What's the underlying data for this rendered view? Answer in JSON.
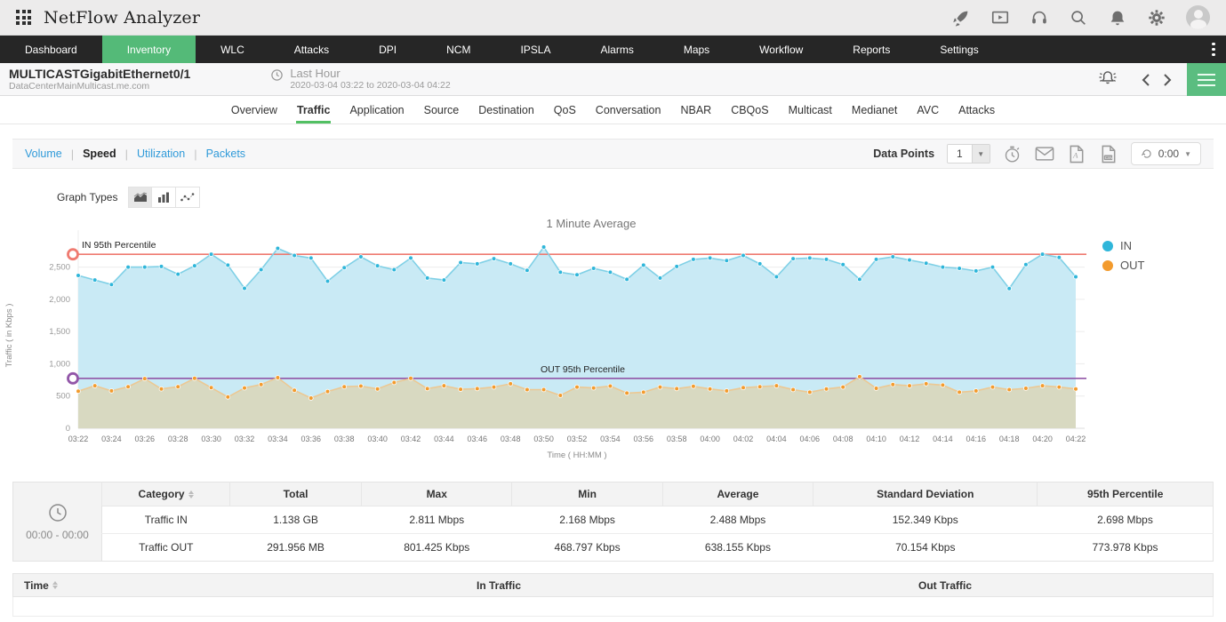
{
  "app": {
    "title": "NetFlow Analyzer"
  },
  "colors": {
    "brand_green": "#54ba78",
    "link_blue": "#2f9ad9",
    "nav_dark": "#262626"
  },
  "topbar_icons": [
    "rocket-icon",
    "presentation-icon",
    "headset-icon",
    "search-icon",
    "bell-icon",
    "gear-icon",
    "avatar"
  ],
  "nav": {
    "items": [
      "Dashboard",
      "Inventory",
      "WLC",
      "Attacks",
      "DPI",
      "NCM",
      "IPSLA",
      "Alarms",
      "Maps",
      "Workflow",
      "Reports",
      "Settings"
    ],
    "active": "Inventory"
  },
  "device": {
    "name": "MULTICASTGigabitEthernet0/1",
    "host": "DataCenterMainMulticast.me.com",
    "period_label": "Last Hour",
    "period_range": "2020-03-04 03:22 to 2020-03-04 04:22"
  },
  "subtabs": {
    "items": [
      "Overview",
      "Traffic",
      "Application",
      "Source",
      "Destination",
      "QoS",
      "Conversation",
      "NBAR",
      "CBQoS",
      "Multicast",
      "Medianet",
      "AVC",
      "Attacks"
    ],
    "active": "Traffic"
  },
  "metric_tabs": {
    "items": [
      "Volume",
      "Speed",
      "Utilization",
      "Packets"
    ],
    "active": "Speed"
  },
  "toolbar": {
    "data_points_label": "Data Points",
    "data_points_value": "1",
    "refresh_value": "0:00"
  },
  "graph_types": {
    "label": "Graph Types",
    "options": [
      "area-chart",
      "bar-chart",
      "scatter-chart"
    ],
    "selected": "area-chart"
  },
  "chart_data": {
    "type": "area",
    "title": "1 Minute Average",
    "xlabel": "Time ( HH:MM )",
    "ylabel": "Traffic ( in Kbps )",
    "ylim": [
      0,
      2880
    ],
    "yticks": [
      0,
      500,
      1000,
      1500,
      2000,
      2500
    ],
    "ytick_labels": [
      "0",
      "500",
      "1,000",
      "1,500",
      "2,000",
      "2,500"
    ],
    "x_tick_every": 2,
    "legend_position": "right",
    "grid": true,
    "x": [
      "03:22",
      "03:23",
      "03:24",
      "03:25",
      "03:26",
      "03:27",
      "03:28",
      "03:29",
      "03:30",
      "03:31",
      "03:32",
      "03:33",
      "03:34",
      "03:35",
      "03:36",
      "03:37",
      "03:38",
      "03:39",
      "03:40",
      "03:41",
      "03:42",
      "03:43",
      "03:44",
      "03:45",
      "03:46",
      "03:47",
      "03:48",
      "03:49",
      "03:50",
      "03:51",
      "03:52",
      "03:53",
      "03:54",
      "03:55",
      "03:56",
      "03:57",
      "03:58",
      "03:59",
      "04:00",
      "04:01",
      "04:02",
      "04:03",
      "04:04",
      "04:05",
      "04:06",
      "04:07",
      "04:08",
      "04:09",
      "04:10",
      "04:11",
      "04:12",
      "04:13",
      "04:14",
      "04:15",
      "04:16",
      "04:17",
      "04:18",
      "04:19",
      "04:20",
      "04:21",
      "04:22"
    ],
    "series": [
      {
        "name": "IN",
        "color": "#2fb6da",
        "line": "#7fd0e6",
        "fill": "#c9eaf5",
        "values": [
          2370,
          2300,
          2230,
          2500,
          2500,
          2510,
          2390,
          2520,
          2700,
          2530,
          2170,
          2460,
          2790,
          2680,
          2640,
          2280,
          2490,
          2660,
          2520,
          2460,
          2640,
          2330,
          2300,
          2570,
          2550,
          2630,
          2550,
          2450,
          2811,
          2420,
          2380,
          2480,
          2420,
          2310,
          2530,
          2330,
          2510,
          2620,
          2640,
          2600,
          2680,
          2550,
          2350,
          2630,
          2640,
          2620,
          2540,
          2310,
          2620,
          2660,
          2610,
          2560,
          2500,
          2480,
          2440,
          2500,
          2168,
          2540,
          2700,
          2650,
          2350
        ]
      },
      {
        "name": "OUT",
        "color": "#f39b2d",
        "line": "#ecc893",
        "fill": "#d8d9c1",
        "values": [
          575,
          660,
          580,
          645,
          770,
          610,
          645,
          775,
          630,
          485,
          625,
          680,
          785,
          590,
          469,
          570,
          645,
          655,
          610,
          710,
          775,
          615,
          660,
          605,
          615,
          640,
          690,
          600,
          600,
          510,
          640,
          625,
          655,
          545,
          560,
          640,
          615,
          650,
          610,
          580,
          630,
          645,
          660,
          600,
          560,
          610,
          640,
          801,
          620,
          680,
          660,
          690,
          670,
          560,
          580,
          640,
          600,
          620,
          660,
          640,
          610
        ]
      }
    ],
    "reference_lines": [
      {
        "label": "IN 95th Percentile",
        "value": 2698,
        "color": "#ef7a70"
      },
      {
        "label": "OUT 95th Percentile",
        "value": 774,
        "color": "#9256a8"
      }
    ]
  },
  "summary_table": {
    "time_range": "00:00 - 00:00",
    "headers": [
      "Category",
      "Total",
      "Max",
      "Min",
      "Average",
      "Standard Deviation",
      "95th Percentile"
    ],
    "rows": [
      [
        "Traffic IN",
        "1.138 GB",
        "2.811 Mbps",
        "2.168 Mbps",
        "2.488 Mbps",
        "152.349 Kbps",
        "2.698 Mbps"
      ],
      [
        "Traffic OUT",
        "291.956 MB",
        "801.425 Kbps",
        "468.797 Kbps",
        "638.155 Kbps",
        "70.154 Kbps",
        "773.978 Kbps"
      ]
    ]
  },
  "bottom_table": {
    "headers": [
      "Time",
      "In Traffic",
      "Out Traffic"
    ]
  }
}
